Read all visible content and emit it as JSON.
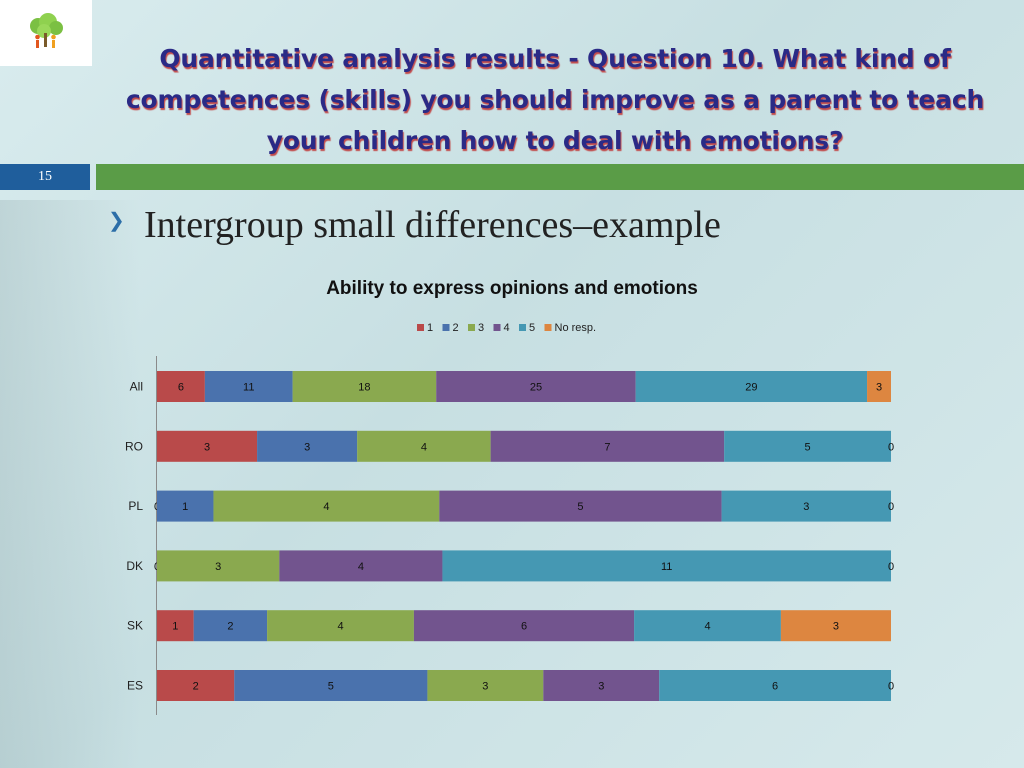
{
  "slide": {
    "title": "Quantitative analysis results - Question 10. What kind of competences (skills) you should improve as a parent to teach your children how to deal with emotions?",
    "number": "15",
    "bullet": "Intergroup small differences–example"
  },
  "colors": {
    "title": "#2a2a86",
    "title_shadow": "#c24b4b",
    "number_box": "#1f5e9c",
    "green_bar": "#5a9c47",
    "bullet_arrow": "#2c6ea8"
  },
  "chart_data": {
    "type": "bar",
    "orientation": "horizontal",
    "stacked": true,
    "normalized": true,
    "title": "Ability to express opinions and emotions",
    "legend_position": "top",
    "grid": false,
    "categories": [
      "All",
      "RO",
      "PL",
      "DK",
      "SK",
      "ES"
    ],
    "series": [
      {
        "name": "1",
        "color": "#b94a4a",
        "values": [
          6,
          3,
          0,
          0,
          1,
          2
        ]
      },
      {
        "name": "2",
        "color": "#4a72ad",
        "values": [
          11,
          3,
          1,
          0,
          2,
          5
        ]
      },
      {
        "name": "3",
        "color": "#8aa94f",
        "values": [
          18,
          4,
          4,
          3,
          4,
          3
        ]
      },
      {
        "name": "4",
        "color": "#72548e",
        "values": [
          25,
          7,
          5,
          4,
          6,
          3
        ]
      },
      {
        "name": "5",
        "color": "#4598b3",
        "values": [
          29,
          5,
          3,
          11,
          4,
          6
        ]
      },
      {
        "name": "No resp.",
        "color": "#dd8640",
        "values": [
          3,
          0,
          0,
          0,
          3,
          0
        ]
      }
    ]
  }
}
